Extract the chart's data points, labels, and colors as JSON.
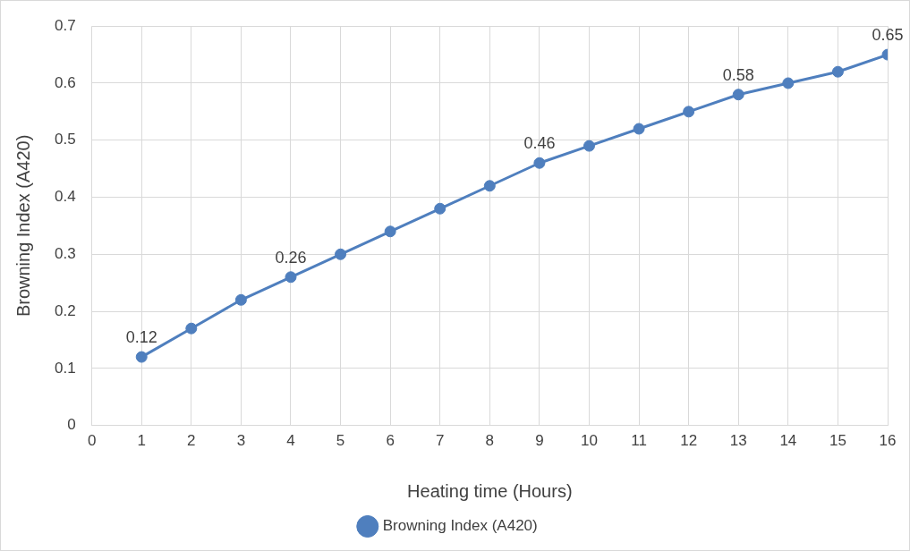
{
  "chart_data": {
    "type": "line",
    "xlabel": "Heating time (Hours)",
    "ylabel": "Browning Index (A420)",
    "x": [
      1,
      2,
      3,
      4,
      5,
      6,
      7,
      8,
      9,
      10,
      11,
      12,
      13,
      14,
      15,
      16
    ],
    "series": [
      {
        "name": "Browning Index (A420)",
        "color": "#4f7fbe",
        "values": [
          0.12,
          0.17,
          0.22,
          0.26,
          0.3,
          0.34,
          0.38,
          0.42,
          0.46,
          0.49,
          0.52,
          0.55,
          0.58,
          0.6,
          0.62,
          0.65
        ],
        "value_labels": [
          "0.12",
          null,
          null,
          "0.26",
          null,
          null,
          null,
          null,
          "0.46",
          null,
          null,
          null,
          "0.58",
          null,
          null,
          "0.65"
        ]
      }
    ],
    "xlim": [
      0,
      16
    ],
    "xticks": [
      0,
      1,
      2,
      3,
      4,
      5,
      6,
      7,
      8,
      9,
      10,
      11,
      12,
      13,
      14,
      15,
      16
    ],
    "ylim": [
      0,
      0.7
    ],
    "yticks": [
      0,
      0.1,
      0.2,
      0.3,
      0.4,
      0.5,
      0.6,
      0.7
    ],
    "grid": true,
    "legend": "bottom",
    "marker": "circle",
    "line_style": "solid"
  }
}
